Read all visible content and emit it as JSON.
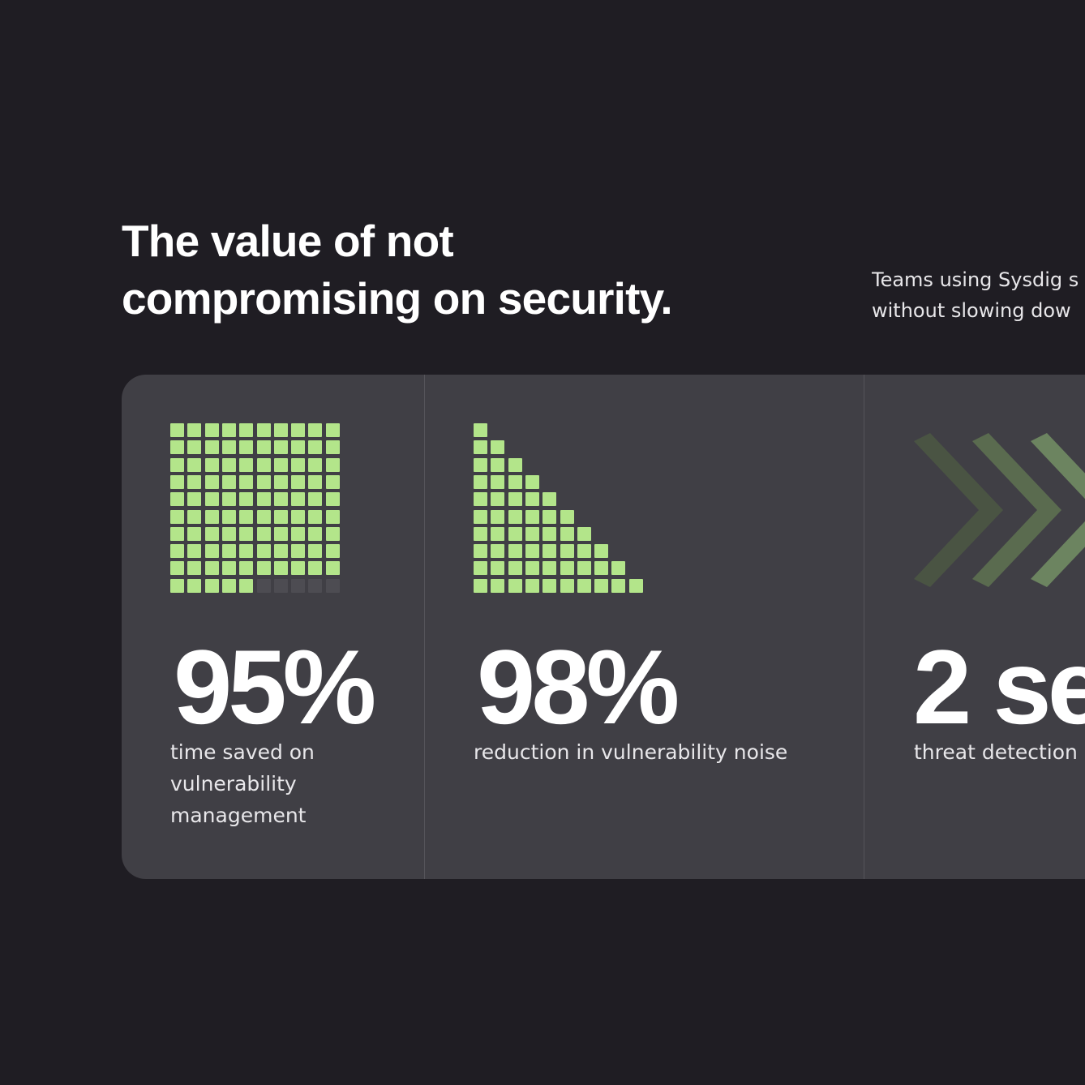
{
  "header": {
    "title_line1": "The value of not",
    "title_line2": "compromising on security.",
    "subtext_line1": "Teams using Sysdig s",
    "subtext_line2": "without slowing dow"
  },
  "stats": [
    {
      "value": "95%",
      "label": "time saved on vulnerability management",
      "label_lines": [
        "time saved on",
        "vulnerability",
        "management"
      ],
      "icon": "waffle-grid-icon",
      "filled_cells": 95,
      "total_cells": 100
    },
    {
      "value": "98%",
      "label": "reduction in vulnerability noise",
      "icon": "staircase-grid-icon"
    },
    {
      "value": "2 se",
      "label": "threat detection",
      "icon": "chevron-arrows-icon"
    }
  ],
  "colors": {
    "background": "#1f1d23",
    "card": "#403f45",
    "accent_green": "#b3e58a",
    "empty_cell": "#4d4c52",
    "chevron_dark": "#4a5443",
    "chevron_mid": "#5a6b4f",
    "chevron_light": "#6c8460"
  }
}
